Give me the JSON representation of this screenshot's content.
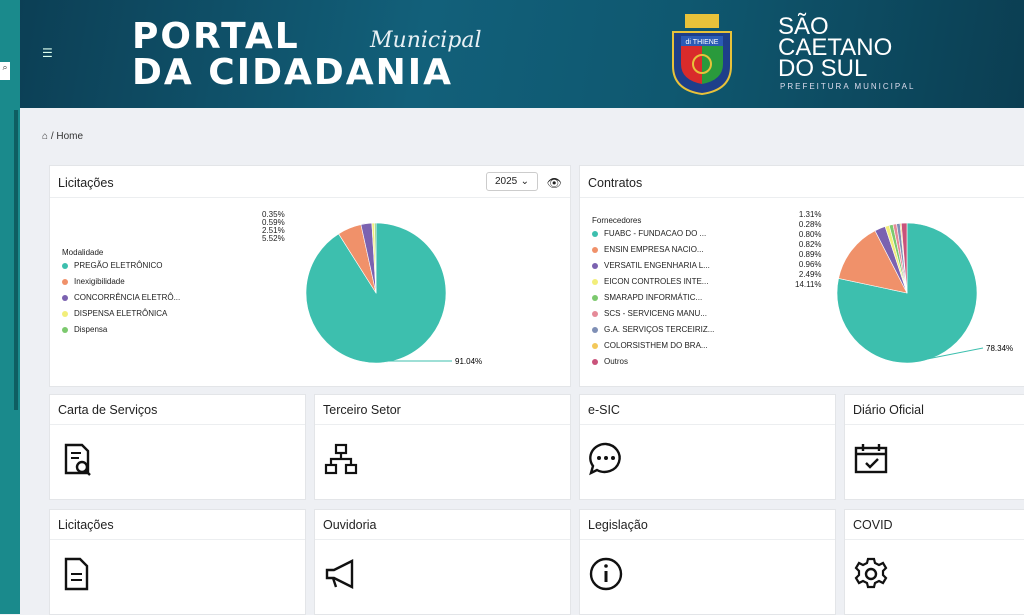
{
  "header": {
    "title_line1": "PORTAL",
    "title_script": "Municipal",
    "title_line2": "DA CIDADANIA",
    "city_lines": [
      "SÃO",
      "CAETANO",
      "DO SUL"
    ],
    "city_sub": "PREFEITURA MUNICIPAL",
    "crest_text": "di THIENE"
  },
  "breadcrumb": {
    "home": "Home"
  },
  "licitacoes": {
    "title": "Licitações",
    "year": "2025",
    "legend_title": "Modalidade",
    "items": [
      {
        "label": "PREGÃO ELETRÔNICO",
        "value": 91.04,
        "pct": "91.04%",
        "color": "#3dbfae"
      },
      {
        "label": "Inexigibilidade",
        "value": 5.52,
        "pct": "5.52%",
        "color": "#f0916a"
      },
      {
        "label": "CONCORRÊNCIA ELETRÔ...",
        "value": 2.51,
        "pct": "2.51%",
        "color": "#7b62b0"
      },
      {
        "label": "DISPENSA ELETRÔNICA",
        "value": 0.59,
        "pct": "0.59%",
        "color": "#f2ee7a"
      },
      {
        "label": "Dispensa",
        "value": 0.35,
        "pct": "0.35%",
        "color": "#7cc96e"
      }
    ]
  },
  "contratos": {
    "title": "Contratos",
    "legend_title": "Fornecedores",
    "items": [
      {
        "label": "FUABC - FUNDACAO DO ...",
        "value": 78.34,
        "pct": "78.34%",
        "color": "#3dbfae"
      },
      {
        "label": "ENSIN EMPRESA NACIO...",
        "value": 14.11,
        "pct": "14.11%",
        "color": "#f0916a"
      },
      {
        "label": "VERSATIL ENGENHARIA L...",
        "value": 2.49,
        "pct": "2.49%",
        "color": "#7b62b0"
      },
      {
        "label": "EICON CONTROLES INTE...",
        "value": 0.96,
        "pct": "0.96%",
        "color": "#f2ee7a"
      },
      {
        "label": "SMARAPD INFORMÁTIC...",
        "value": 0.89,
        "pct": "0.89%",
        "color": "#7cc96e"
      },
      {
        "label": "SCS - SERVICENG MANU...",
        "value": 0.82,
        "pct": "0.82%",
        "color": "#e58a98"
      },
      {
        "label": "G.A. SERVIÇOS TERCEIRIZ...",
        "value": 0.8,
        "pct": "0.80%",
        "color": "#7f8fb5"
      },
      {
        "label": "COLORSISTHEM DO BRA...",
        "value": 0.28,
        "pct": "0.28%",
        "color": "#f3c85a"
      },
      {
        "label": "Outros",
        "value": 1.31,
        "pct": "1.31%",
        "color": "#c9527a"
      }
    ]
  },
  "tiles": [
    {
      "label": "Carta de Serviços",
      "icon": "document-search-icon"
    },
    {
      "label": "Terceiro Setor",
      "icon": "org-chart-icon"
    },
    {
      "label": "e-SIC",
      "icon": "chat-bubble-icon"
    },
    {
      "label": "Diário Oficial",
      "icon": "calendar-check-icon"
    },
    {
      "label": "Licitações",
      "icon": "document-icon"
    },
    {
      "label": "Ouvidoria",
      "icon": "megaphone-icon"
    },
    {
      "label": "Legislação",
      "icon": "info-icon"
    },
    {
      "label": "COVID",
      "icon": "gear-icon"
    }
  ]
}
